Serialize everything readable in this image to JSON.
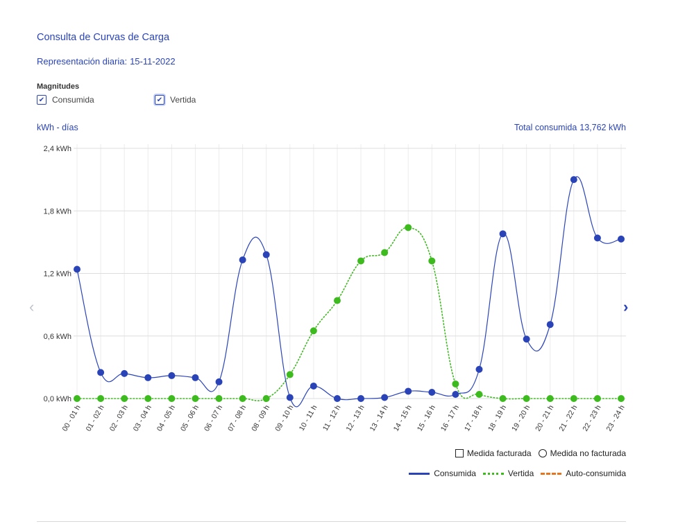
{
  "header": {
    "title": "Consulta de Curvas de Carga",
    "subtitle_label": "Representación diaria:",
    "subtitle_date": "15-11-2022"
  },
  "magnitudes": {
    "label": "Magnitudes",
    "options": [
      {
        "label": "Consumida",
        "checked": true
      },
      {
        "label": "Vertida",
        "checked": true
      }
    ]
  },
  "unit_label": "kWh - días",
  "total": {
    "label": "Total consumida",
    "value": "13,762 kWh"
  },
  "legend": {
    "measure_types": [
      "Medida facturada",
      "Medida no facturada"
    ],
    "series": [
      "Consumida",
      "Vertida",
      "Auto-consumida"
    ]
  },
  "colors": {
    "consumida": "#2a44b8",
    "vertida": "#3dba1e",
    "autoconsumida": "#e8741e",
    "accent": "#2a44b8"
  },
  "chart_data": {
    "type": "line",
    "ylabel": "",
    "ylim": [
      0,
      2.4
    ],
    "yticks": [
      "0,0 kWh",
      "0,6 kWh",
      "1,2 kWh",
      "1,8 kWh",
      "2,4 kWh"
    ],
    "ytick_values": [
      0,
      0.6,
      1.2,
      1.8,
      2.4
    ],
    "grid": true,
    "legend_position": "bottom-right",
    "categories": [
      "00 - 01 h",
      "01 - 02 h",
      "02 - 03 h",
      "03 - 04 h",
      "04 - 05 h",
      "05 - 06 h",
      "06 - 07 h",
      "07 - 08 h",
      "08 - 09 h",
      "09 - 10 h",
      "10 - 11 h",
      "11 - 12 h",
      "12 - 13 h",
      "13 - 14 h",
      "14 - 15 h",
      "15 - 16 h",
      "16 - 17 h",
      "17 - 18 h",
      "18 - 19 h",
      "19 - 20 h",
      "20 - 21 h",
      "21 - 22 h",
      "22 - 23 h",
      "23 - 24 h"
    ],
    "series": [
      {
        "name": "Consumida",
        "style": "solid",
        "values": [
          1.24,
          0.25,
          0.24,
          0.2,
          0.22,
          0.2,
          0.16,
          1.33,
          1.38,
          0.01,
          0.12,
          0.0,
          0.0,
          0.01,
          0.07,
          0.06,
          0.04,
          0.28,
          1.58,
          0.57,
          0.71,
          2.1,
          1.54,
          1.53
        ]
      },
      {
        "name": "Vertida",
        "style": "dotted",
        "values": [
          0,
          0,
          0,
          0,
          0,
          0,
          0,
          0,
          0,
          0.23,
          0.65,
          0.94,
          1.32,
          1.4,
          1.64,
          1.32,
          0.14,
          0.04,
          0,
          0,
          0,
          0,
          0,
          0
        ]
      }
    ]
  }
}
